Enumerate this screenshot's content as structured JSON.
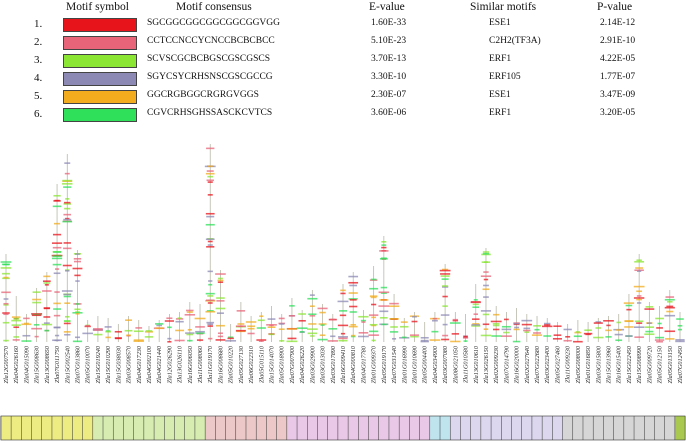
{
  "headers": {
    "symbol": "Motif symbol",
    "consensus": "Motif consensus",
    "evalue": "E-value",
    "similar": "Similar motifs",
    "pvalue": "P-value"
  },
  "motifs": [
    {
      "num": "1.",
      "color": "#e8141c",
      "consensus": "SGCGGCGGCGGCGGCGGVGG",
      "evalue": "1.60E-33",
      "similar": "ESE1",
      "pvalue": "2.14E-12"
    },
    {
      "num": "2.",
      "color": "#e86478",
      "consensus": "CCTCCNCCYCNCCBCBCBCC",
      "evalue": "5.10E-23",
      "similar": "C2H2(TF3A)",
      "pvalue": "2.91E-10"
    },
    {
      "num": "3.",
      "color": "#8ae632",
      "consensus": "SCVSCGCBCBGSCGSCGSCS",
      "evalue": "3.70E-13",
      "similar": "ERF1",
      "pvalue": "4.22E-05"
    },
    {
      "num": "4.",
      "color": "#8c8ab4",
      "consensus": "SGYCSYCRHSNSCGSCGCCG",
      "evalue": "3.30E-10",
      "similar": "ERF105",
      "pvalue": "1.77E-07"
    },
    {
      "num": "5.",
      "color": "#f2ac1e",
      "consensus": "GGCRGBGGCRGRGVGGS",
      "evalue": "2.30E-07",
      "similar": "ESE1",
      "pvalue": "3.47E-09"
    },
    {
      "num": "6.",
      "color": "#2ee05a",
      "consensus": "CGVCRHSGHSSASCKCVTCS",
      "evalue": "3.60E-06",
      "similar": "ERF1",
      "pvalue": "3.20E-05"
    }
  ],
  "genes": [
    {
      "label": "Zla12G007570",
      "height": 88,
      "seg": "#ecec82"
    },
    {
      "label": "Zla04G026160",
      "height": 46,
      "seg": "#ecec82"
    },
    {
      "label": "Zla04G015090",
      "height": 28,
      "seg": "#ecec82"
    },
    {
      "label": "Zla15G008630",
      "height": 54,
      "seg": "#ecec82"
    },
    {
      "label": "Zla13G008650",
      "height": 70,
      "seg": "#ecec82"
    },
    {
      "label": "Zla07G011750",
      "height": 158,
      "seg": "#ecec82"
    },
    {
      "label": "Zla15G002540",
      "height": 188,
      "seg": "#ecec82"
    },
    {
      "label": "Zla07G013860",
      "height": 92,
      "seg": "#ecec82"
    },
    {
      "label": "Zla05G010070",
      "height": 22,
      "seg": "#ecec82"
    },
    {
      "label": "Zla15G019240",
      "height": 26,
      "seg": "#d6ecb0"
    },
    {
      "label": "Zla15G010290",
      "height": 24,
      "seg": "#d6ecb0"
    },
    {
      "label": "Zla15G038030",
      "height": 18,
      "seg": "#d6ecb0"
    },
    {
      "label": "Zla03G008570",
      "height": 26,
      "seg": "#d6ecb0"
    },
    {
      "label": "Zla04G017230",
      "height": 22,
      "seg": "#d6ecb0"
    },
    {
      "label": "Zla04G002100",
      "height": 16,
      "seg": "#d6ecb0"
    },
    {
      "label": "Zla04G021440",
      "height": 22,
      "seg": "#d6ecb0"
    },
    {
      "label": "Zla12G026290",
      "height": 28,
      "seg": "#d6ecb0"
    },
    {
      "label": "Zla13G026110",
      "height": 30,
      "seg": "#d6ecb0"
    },
    {
      "label": "Zla16G006050",
      "height": 40,
      "seg": "#d6ecb0"
    },
    {
      "label": "Zla11G008060",
      "height": 38,
      "seg": "#d6ecb0"
    },
    {
      "label": "Zla11G019170",
      "height": 198,
      "seg": "#ecc8c8"
    },
    {
      "label": "Zla16G008680",
      "height": 72,
      "seg": "#ecc8c8"
    },
    {
      "label": "Zla05G010220",
      "height": 18,
      "seg": "#ecc8c8"
    },
    {
      "label": "Zla05G027130",
      "height": 40,
      "seg": "#ecc8c8"
    },
    {
      "label": "Zla06G022310",
      "height": 26,
      "seg": "#ecc8c8"
    },
    {
      "label": "Zla05G015110",
      "height": 30,
      "seg": "#ecc8c8"
    },
    {
      "label": "Zla15G014070",
      "height": 36,
      "seg": "#ecc8c8"
    },
    {
      "label": "Zla05G018900",
      "height": 28,
      "seg": "#ecc8c8"
    },
    {
      "label": "Zla07G007900",
      "height": 44,
      "seg": "#e8c8e6"
    },
    {
      "label": "Zla04G026220",
      "height": 32,
      "seg": "#e8c8e6"
    },
    {
      "label": "Zla03G029900",
      "height": 52,
      "seg": "#e8c8e6"
    },
    {
      "label": "Zla03G013030",
      "height": 38,
      "seg": "#e8c8e6"
    },
    {
      "label": "Zla03G017890",
      "height": 28,
      "seg": "#e8c8e6"
    },
    {
      "label": "Zla16G009410",
      "height": 58,
      "seg": "#e8c8e6"
    },
    {
      "label": "Zla04G000810",
      "height": 70,
      "seg": "#e8c8e6"
    },
    {
      "label": "Zla04G017780",
      "height": 32,
      "seg": "#e8c8e6"
    },
    {
      "label": "Zla01G009370",
      "height": 76,
      "seg": "#e8c8e6"
    },
    {
      "label": "Zla05G019170",
      "height": 106,
      "seg": "#e8c8e6"
    },
    {
      "label": "Zla07G031540",
      "height": 48,
      "seg": "#e8c8e6"
    },
    {
      "label": "Zla01G016990",
      "height": 24,
      "seg": "#e8c8e6"
    },
    {
      "label": "Zla01G010690",
      "height": 30,
      "seg": "#e8c8e6"
    },
    {
      "label": "Zla05G004400",
      "height": 20,
      "seg": "#e8c8e6"
    },
    {
      "label": "Zla04G034900",
      "height": 30,
      "seg": "#bfe4ee"
    },
    {
      "label": "Zla03G007080",
      "height": 78,
      "seg": "#bfe4ee"
    },
    {
      "label": "Zla08G021050",
      "height": 30,
      "seg": "#dcd6ee"
    },
    {
      "label": "Zla11G010580",
      "height": 28,
      "seg": "#dcd6ee"
    },
    {
      "label": "Zla13G010610",
      "height": 58,
      "seg": "#dcd6ee"
    },
    {
      "label": "Zla13G026150",
      "height": 94,
      "seg": "#dcd6ee"
    },
    {
      "label": "Zla02G009230",
      "height": 36,
      "seg": "#dcd6ee"
    },
    {
      "label": "Zla07G014790",
      "height": 30,
      "seg": "#dcd6ee"
    },
    {
      "label": "Zla16G020000",
      "height": 34,
      "seg": "#dcd6ee"
    },
    {
      "label": "Zla02G027640",
      "height": 28,
      "seg": "#dcd6ee"
    },
    {
      "label": "Zla07G022680",
      "height": 26,
      "seg": "#dcd6ee"
    },
    {
      "label": "Zla03G023400",
      "height": 24,
      "seg": "#dcd6ee"
    },
    {
      "label": "Zla05G027460",
      "height": 20,
      "seg": "#dcd6ee"
    },
    {
      "label": "Zla11G009230",
      "height": 18,
      "seg": "#d6d6d6"
    },
    {
      "label": "Zla05G008000",
      "height": 22,
      "seg": "#d6d6d6"
    },
    {
      "label": "Zla01G016850",
      "height": 20,
      "seg": "#d6d6d6"
    },
    {
      "label": "Zla03G015800",
      "height": 24,
      "seg": "#d6d6d6"
    },
    {
      "label": "Zla15G013960",
      "height": 26,
      "seg": "#d6d6d6"
    },
    {
      "label": "Zla16G015400",
      "height": 28,
      "seg": "#d6d6d6"
    },
    {
      "label": "Zla15G022450",
      "height": 48,
      "seg": "#d6d6d6"
    },
    {
      "label": "Zla15G008990",
      "height": 88,
      "seg": "#d6d6d6"
    },
    {
      "label": "Zla05G009720",
      "height": 40,
      "seg": "#d6d6d6"
    },
    {
      "label": "Zla05G012150",
      "height": 36,
      "seg": "#d6d6d6"
    },
    {
      "label": "Zla05G013150",
      "height": 52,
      "seg": "#d6d6d6"
    },
    {
      "label": "Zla07G012450",
      "height": 30,
      "seg": "#a8c850"
    }
  ]
}
